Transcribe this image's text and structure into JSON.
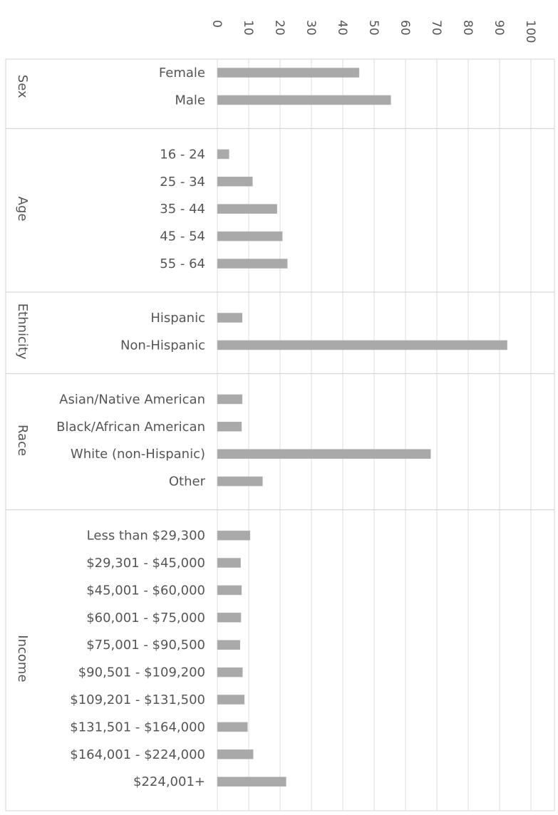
{
  "chart_data": {
    "type": "bar",
    "orientation": "horizontal",
    "xlim": [
      0,
      100
    ],
    "ticks": [
      "0",
      "10",
      "20",
      "30",
      "40",
      "50",
      "60",
      "70",
      "80",
      "90",
      "100"
    ],
    "grid": true,
    "legend": "none",
    "bar_color": "#a9a9a9",
    "groups": [
      {
        "label": "Sex",
        "categories": [
          "Female",
          "Male"
        ],
        "values": [
          45.2,
          55.3
        ]
      },
      {
        "label": "Age",
        "categories": [
          "16 - 24",
          "25 - 34",
          "35 - 44",
          "45 - 54",
          "55 - 64"
        ],
        "values": [
          3.7,
          11.2,
          19,
          20.7,
          22.3
        ]
      },
      {
        "label": "Ethnicity",
        "categories": [
          "Hispanic",
          "Non-Hispanic"
        ],
        "values": [
          7.9,
          92.4
        ]
      },
      {
        "label": "Race",
        "categories": [
          "Asian/Native American",
          "Black/African American",
          "White (non-Hispanic)",
          "Other"
        ],
        "values": [
          7.9,
          7.7,
          68,
          14.4
        ]
      },
      {
        "label": "Income",
        "categories": [
          "Less than $29,300",
          "$29,301 - $45,000",
          "$45,001 - $60,000",
          "$60,001 - $75,000",
          "$75,001 - $90,500",
          "$90,501 - $109,200",
          "$109,201 - $131,500",
          "$131,501 - $164,000",
          "$164,001 - $224,000",
          "$224,001+"
        ],
        "values": [
          10.4,
          7.4,
          7.7,
          7.5,
          7.2,
          8,
          8.6,
          9.6,
          11.4,
          21.9
        ]
      }
    ]
  }
}
